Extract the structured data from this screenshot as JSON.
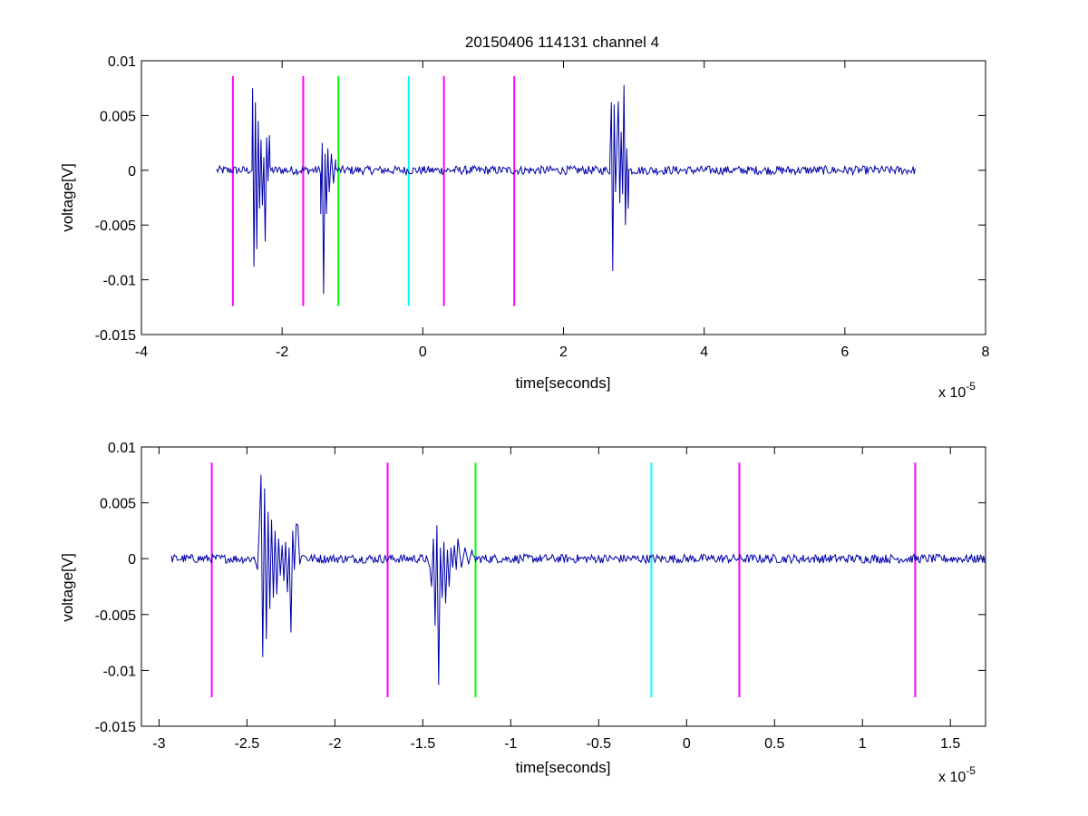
{
  "figure": {
    "title": "20150406 114131 channel 4"
  },
  "colors": {
    "signal": "#0000aa",
    "magenta": "#ff00ff",
    "green": "#00ff00",
    "cyan": "#00ffff"
  },
  "chart_data": [
    {
      "type": "line",
      "title": "20150406 114131 channel 4",
      "xlabel": "time[seconds]",
      "ylabel": "voltage[V]",
      "x_exponent_label": "x 10",
      "x_exponent": "-5",
      "xlim": [
        -4,
        8
      ],
      "ylim": [
        -0.015,
        0.01
      ],
      "xticks": [
        -4,
        -2,
        0,
        2,
        4,
        6,
        8
      ],
      "xtick_labels": [
        "-4",
        "-2",
        "0",
        "2",
        "4",
        "6",
        "8"
      ],
      "yticks": [
        -0.015,
        -0.01,
        -0.005,
        0,
        0.005,
        0.01
      ],
      "ytick_labels": [
        "-0.015",
        "-0.01",
        "-0.005",
        "0",
        "0.005",
        "0.01"
      ],
      "signal": {
        "x_range": [
          -2.93,
          7.0
        ],
        "baseline_noise": 0.0002,
        "bursts": [
          {
            "x": [
              -2.42,
              -2.4,
              -2.38,
              -2.36,
              -2.34,
              -2.32,
              -2.3,
              -2.28,
              -2.26,
              -2.24,
              -2.22,
              -2.2,
              -2.18
            ],
            "y": [
              0.0075,
              -0.0088,
              0.0062,
              -0.0072,
              0.0045,
              -0.0035,
              0.0028,
              -0.0032,
              0.0012,
              -0.0065,
              0.003,
              -0.001,
              0.0032
            ]
          },
          {
            "x": [
              -1.45,
              -1.43,
              -1.41,
              -1.39,
              -1.37,
              -1.35,
              -1.33,
              -1.3,
              -1.27,
              -1.24
            ],
            "y": [
              -0.004,
              0.0025,
              -0.0113,
              0.0015,
              -0.004,
              0.002,
              -0.002,
              0.0015,
              -0.0012,
              0.001
            ]
          },
          {
            "x": [
              2.66,
              2.68,
              2.7,
              2.72,
              2.74,
              2.76,
              2.78,
              2.8,
              2.82,
              2.84,
              2.86,
              2.88,
              2.9,
              2.92
            ],
            "y": [
              0.001,
              0.0062,
              -0.0092,
              0.006,
              -0.002,
              0.0025,
              0.0063,
              -0.003,
              0.0035,
              -0.0022,
              0.0078,
              -0.005,
              0.002,
              -0.0035
            ]
          }
        ]
      },
      "markers": [
        {
          "x": -2.7,
          "color": "magenta",
          "ymin": -0.0124,
          "ymax": 0.0086
        },
        {
          "x": -1.7,
          "color": "magenta",
          "ymin": -0.0124,
          "ymax": 0.0086
        },
        {
          "x": -1.2,
          "color": "green",
          "ymin": -0.0124,
          "ymax": 0.0086
        },
        {
          "x": -0.2,
          "color": "cyan",
          "ymin": -0.0124,
          "ymax": 0.0086
        },
        {
          "x": 0.3,
          "color": "magenta",
          "ymin": -0.0124,
          "ymax": 0.0086
        },
        {
          "x": 1.3,
          "color": "magenta",
          "ymin": -0.0124,
          "ymax": 0.0086
        }
      ]
    },
    {
      "type": "line",
      "title": "",
      "xlabel": "time[seconds]",
      "ylabel": "voltage[V]",
      "x_exponent_label": "x 10",
      "x_exponent": "-5",
      "xlim": [
        -3.1,
        1.7
      ],
      "ylim": [
        -0.015,
        0.01
      ],
      "xticks": [
        -3,
        -2.5,
        -2,
        -1.5,
        -1,
        -0.5,
        0,
        0.5,
        1,
        1.5
      ],
      "xtick_labels": [
        "-3",
        "-2.5",
        "-2",
        "-1.5",
        "-1",
        "-0.5",
        "0",
        "0.5",
        "1",
        "1.5"
      ],
      "yticks": [
        -0.015,
        -0.01,
        -0.005,
        0,
        0.005,
        0.01
      ],
      "ytick_labels": [
        "-0.015",
        "-0.01",
        "-0.005",
        "0",
        "0.005",
        "0.01"
      ],
      "signal": {
        "x_range": [
          -2.93,
          1.7
        ],
        "baseline_noise": 0.0002,
        "bursts": [
          {
            "x": [
              -2.46,
              -2.44,
              -2.43,
              -2.42,
              -2.41,
              -2.4,
              -2.39,
              -2.38,
              -2.37,
              -2.36,
              -2.35,
              -2.34,
              -2.33,
              -2.32,
              -2.31,
              -2.3,
              -2.29,
              -2.28,
              -2.27,
              -2.26,
              -2.25,
              -2.24,
              -2.23,
              -2.22,
              -2.21,
              -2.2,
              -2.19,
              -2.18,
              -2.17,
              -2.16
            ],
            "y": [
              0.0002,
              -0.001,
              0.0028,
              0.0075,
              -0.0088,
              0.0063,
              -0.0072,
              0.0042,
              -0.0045,
              0.0035,
              -0.0035,
              0.0025,
              -0.0032,
              0.0018,
              -0.0015,
              0.0012,
              -0.002,
              0.0015,
              -0.003,
              0.001,
              -0.0066,
              0.0025,
              -0.001,
              0.0031,
              0.003,
              -0.0005,
              0.0002,
              0.0003,
              0.0002,
              0.0001
            ]
          },
          {
            "x": [
              -1.48,
              -1.46,
              -1.45,
              -1.44,
              -1.43,
              -1.42,
              -1.41,
              -1.4,
              -1.39,
              -1.38,
              -1.37,
              -1.36,
              -1.35,
              -1.34,
              -1.33,
              -1.32,
              -1.31,
              -1.3,
              -1.28,
              -1.26,
              -1.24,
              -1.22
            ],
            "y": [
              0.0003,
              -0.0008,
              -0.0025,
              0.0018,
              -0.006,
              0.003,
              -0.0113,
              0.001,
              -0.0035,
              0.0015,
              -0.004,
              0.0008,
              -0.0025,
              0.001,
              -0.0008,
              0.0012,
              -0.001,
              0.0018,
              -0.0008,
              0.001,
              -0.0005,
              0.0008
            ]
          }
        ]
      },
      "markers": [
        {
          "x": -2.7,
          "color": "magenta",
          "ymin": -0.0124,
          "ymax": 0.0086
        },
        {
          "x": -1.7,
          "color": "magenta",
          "ymin": -0.0124,
          "ymax": 0.0086
        },
        {
          "x": -1.2,
          "color": "green",
          "ymin": -0.0124,
          "ymax": 0.0086
        },
        {
          "x": -0.2,
          "color": "cyan",
          "ymin": -0.0124,
          "ymax": 0.0086
        },
        {
          "x": 0.3,
          "color": "magenta",
          "ymin": -0.0124,
          "ymax": 0.0086
        },
        {
          "x": 1.3,
          "color": "magenta",
          "ymin": -0.0124,
          "ymax": 0.0086
        }
      ]
    }
  ]
}
